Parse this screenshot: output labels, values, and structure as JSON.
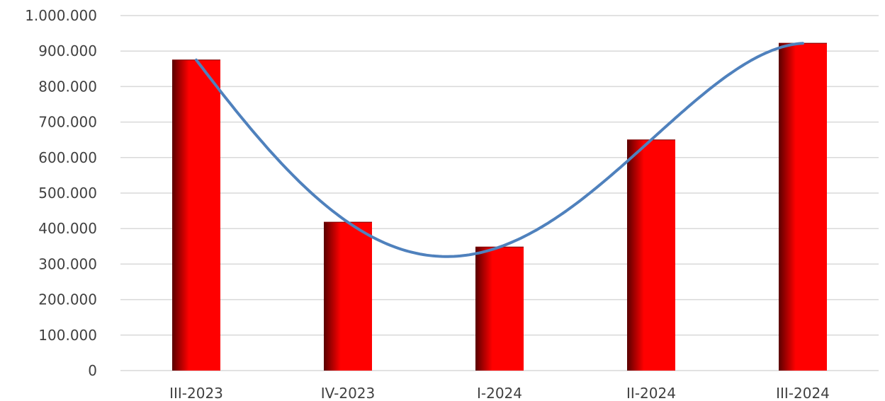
{
  "chart_data": {
    "type": "bar",
    "categories": [
      "III-2023",
      "IV-2023",
      "I-2024",
      "II-2024",
      "III-2024"
    ],
    "values": [
      875000,
      418000,
      348000,
      650000,
      922000
    ],
    "y_tick_labels": [
      "0",
      "100.000",
      "200.000",
      "300.000",
      "400.000",
      "500.000",
      "600.000",
      "700.000",
      "800.000",
      "900.000",
      "1.000.000"
    ],
    "ylim": [
      0,
      1000000
    ],
    "ytick_step": 100000,
    "grid": true,
    "trendline": {
      "type": "polynomial",
      "color": "#4f81bd"
    },
    "colors": {
      "bar": "#ff0000",
      "bar_dark": "#5a0000",
      "grid": "#d9d9d9"
    }
  }
}
